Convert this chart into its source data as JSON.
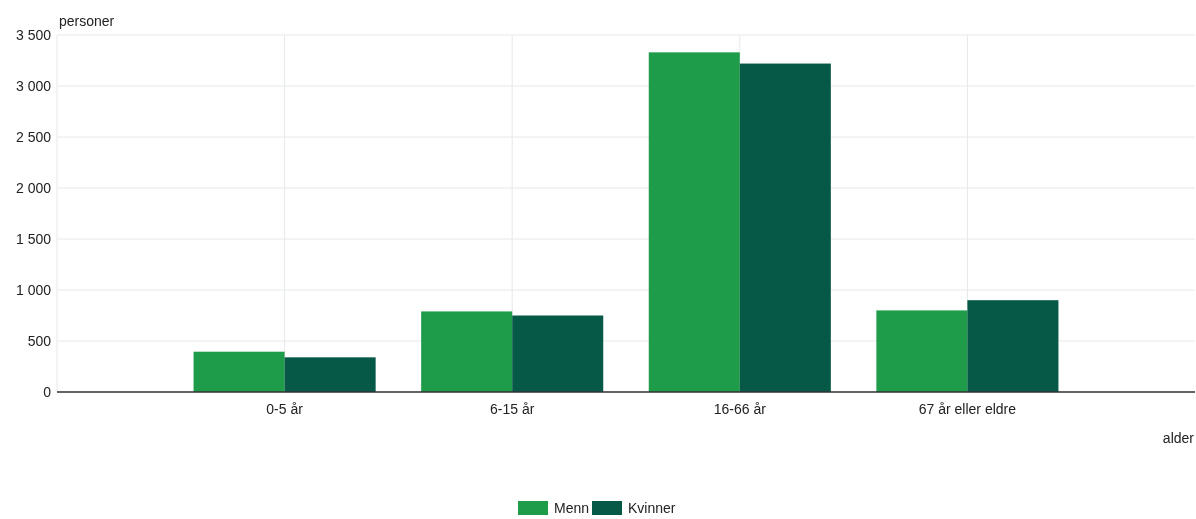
{
  "chart_data": {
    "type": "bar",
    "categories": [
      "0-5 år",
      "6-15 år",
      "16-66 år",
      "67 år eller eldre"
    ],
    "series": [
      {
        "name": "Menn",
        "color": "#1e9c4a",
        "values": [
          395,
          790,
          3330,
          800
        ]
      },
      {
        "name": "Kvinner",
        "color": "#065847",
        "values": [
          340,
          750,
          3220,
          900
        ]
      }
    ],
    "xlabel": "alder",
    "ylabel": "personer",
    "ylim": [
      0,
      3500
    ],
    "yticks": [
      0,
      {
        "value": 500,
        "label": "500"
      },
      {
        "value": 1000,
        "label": "1 000"
      },
      {
        "value": 1500,
        "label": "1 500"
      },
      {
        "value": 2000,
        "label": "2 000"
      },
      {
        "value": 2500,
        "label": "2 500"
      },
      {
        "value": 3000,
        "label": "3 000"
      },
      {
        "value": 3500,
        "label": "3 500"
      }
    ],
    "grid": true,
    "legend": "bottom"
  }
}
